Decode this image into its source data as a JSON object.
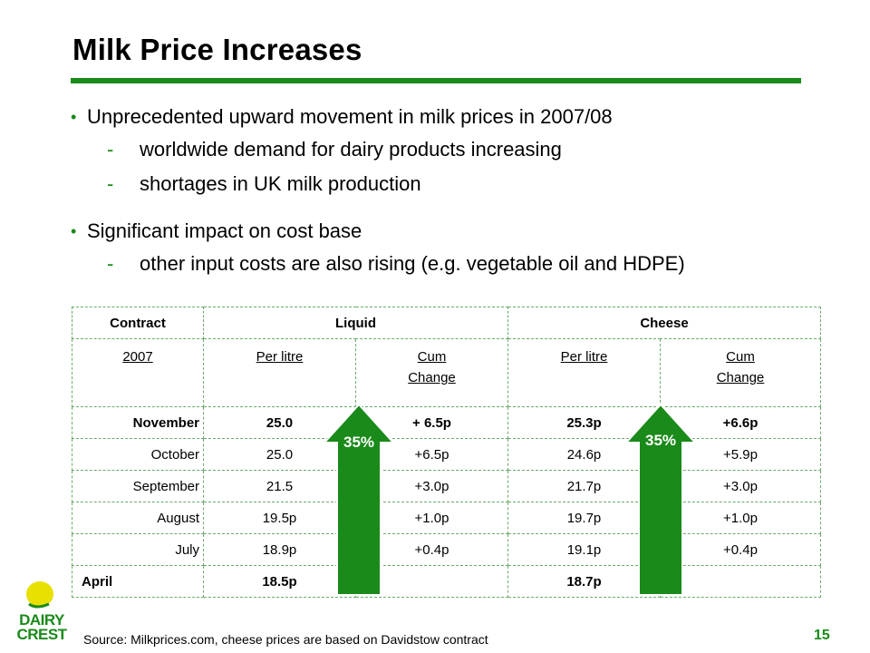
{
  "slide": {
    "title": "Milk Price Increases",
    "bullets": [
      {
        "text": "Unprecedented upward movement in milk prices in 2007/08",
        "subs": [
          "worldwide demand for dairy products increasing",
          "shortages in UK milk production"
        ]
      },
      {
        "text": "Significant impact on cost base",
        "subs": [
          "other input costs are also rising (e.g. vegetable oil and HDPE)"
        ]
      }
    ],
    "bullet_glyph": "•",
    "dash_glyph": "-"
  },
  "table": {
    "header": {
      "contract": "Contract",
      "liquid": "Liquid",
      "cheese": "Cheese"
    },
    "sub": {
      "year": "2007",
      "per_litre": "Per litre",
      "cum": "Cum",
      "change": "Change"
    },
    "rows": [
      {
        "month": "November",
        "liquid_pl": "25.0",
        "liquid_cum": "+ 6.5p",
        "cheese_pl": "25.3p",
        "cheese_cum": "+6.6p",
        "bold": true
      },
      {
        "month": "October",
        "liquid_pl": "25.0",
        "liquid_cum": "+6.5p",
        "cheese_pl": "24.6p",
        "cheese_cum": "+5.9p",
        "bold": false
      },
      {
        "month": "September",
        "liquid_pl": "21.5",
        "liquid_cum": "+3.0p",
        "cheese_pl": "21.7p",
        "cheese_cum": "+3.0p",
        "bold": false
      },
      {
        "month": "August",
        "liquid_pl": "19.5p",
        "liquid_cum": "+1.0p",
        "cheese_pl": "19.7p",
        "cheese_cum": "+1.0p",
        "bold": false
      },
      {
        "month": "July",
        "liquid_pl": "18.9p",
        "liquid_cum": "+0.4p",
        "cheese_pl": "19.1p",
        "cheese_cum": "+0.4p",
        "bold": false
      },
      {
        "month": "April",
        "liquid_pl": "18.5p",
        "liquid_cum": "",
        "cheese_pl": "18.7p",
        "cheese_cum": "",
        "bold": true
      }
    ]
  },
  "arrows": {
    "liquid_label": "35%",
    "cheese_label": "35%",
    "color": "#1a8a1a"
  },
  "footer": {
    "source": "Source: Milkprices.com, cheese prices are based on Davidstow contract",
    "page_number": "15",
    "logo_line1": "DAIRY",
    "logo_line2": "CREST"
  },
  "colors": {
    "brand_green": "#1a8a1a",
    "logo_yellow": "#e8e000"
  }
}
